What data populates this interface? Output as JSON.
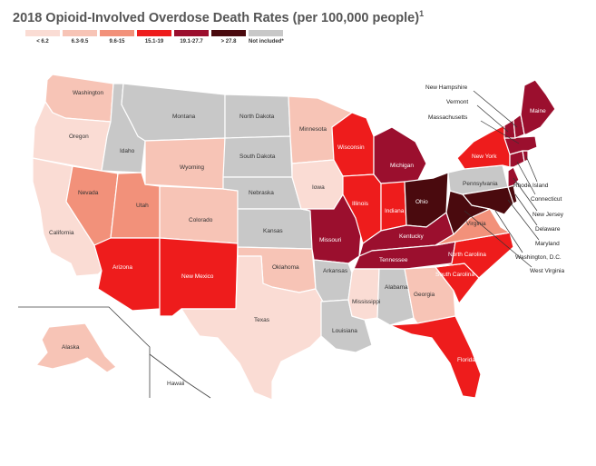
{
  "title": "2018 Opioid-Involved Overdose Death Rates (per 100,000 people)",
  "title_superscript": "1",
  "legend": [
    {
      "label": "< 6.2",
      "color": "#fadcd4"
    },
    {
      "label": "6.3-9.5",
      "color": "#f7c4b6"
    },
    {
      "label": "9.6-15",
      "color": "#f2917a"
    },
    {
      "label": "15.1-19",
      "color": "#ee1c1c"
    },
    {
      "label": "19.1-27.7",
      "color": "#9b0f2e"
    },
    {
      "label": "> 27.8",
      "color": "#4a0a0e"
    },
    {
      "label": "Not included*",
      "color": "#c8c8c8"
    }
  ],
  "states": {
    "Washington": "#f7c4b6",
    "Oregon": "#fadcd4",
    "California": "#fadcd4",
    "Idaho": "#c8c8c8",
    "Nevada": "#f2917a",
    "Utah": "#f2917a",
    "Arizona": "#ee1c1c",
    "Montana": "#c8c8c8",
    "Wyoming": "#f7c4b6",
    "Colorado": "#f7c4b6",
    "New Mexico": "#ee1c1c",
    "North Dakota": "#c8c8c8",
    "South Dakota": "#c8c8c8",
    "Nebraska": "#c8c8c8",
    "Kansas": "#c8c8c8",
    "Oklahoma": "#f7c4b6",
    "Texas": "#fadcd4",
    "Minnesota": "#f7c4b6",
    "Iowa": "#fadcd4",
    "Missouri": "#9b0f2e",
    "Arkansas": "#c8c8c8",
    "Louisiana": "#c8c8c8",
    "Wisconsin": "#ee1c1c",
    "Illinois": "#ee1c1c",
    "Michigan": "#9b0f2e",
    "Indiana": "#ee1c1c",
    "Ohio": "#4a0a0e",
    "Kentucky": "#9b0f2e",
    "Tennessee": "#9b0f2e",
    "Mississippi": "#fadcd4",
    "Alabama": "#c8c8c8",
    "Georgia": "#f7c4b6",
    "Florida": "#ee1c1c",
    "South Carolina": "#ee1c1c",
    "North Carolina": "#ee1c1c",
    "Virginia": "#f2917a",
    "West Virginia": "#4a0a0e",
    "Pennsylvania": "#c8c8c8",
    "New York": "#ee1c1c",
    "Maryland": "#4a0a0e",
    "Delaware": "#4a0a0e",
    "New Jersey": "#9b0f2e",
    "Connecticut": "#9b0f2e",
    "Rhode Island": "#9b0f2e",
    "Massachusetts": "#9b0f2e",
    "Vermont": "#9b0f2e",
    "New Hampshire": "#9b0f2e",
    "Maine": "#9b0f2e",
    "Alaska": "#f7c4b6",
    "Hawaii": "#ffffff"
  },
  "callouts": [
    "New Hampshire",
    "Vermont",
    "Massachusetts",
    "Rhode Island",
    "Connecticut",
    "New Jersey",
    "Delaware",
    "Maryland",
    "Washington, D.C.",
    "West Virginia"
  ]
}
